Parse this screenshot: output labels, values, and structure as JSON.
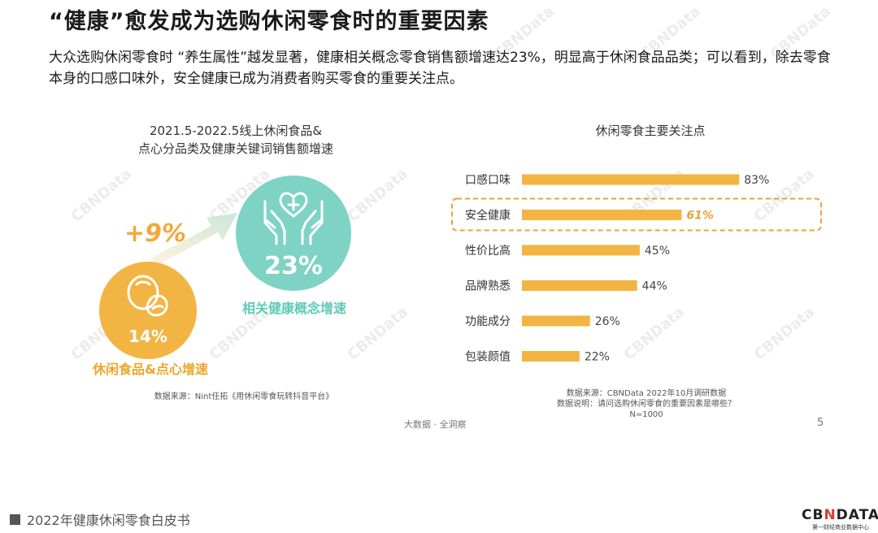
{
  "title": "“健康”愈发成为选购休闲零食时的重要因素",
  "intro": "大众选购休闲零食时 “养生属性”越发显著，健康相关概念零食销售额增速达23%，明显高于休闲食品品类；可以看到，除去零食本身的口感口味外，安全健康已成为消费者购买零食的重要关注点。",
  "left_panel": {
    "title_line1": "2021.5-2022.5线上休闲食品&",
    "title_line2": "点心分品类及健康关键词销售额增速",
    "big_value": "23%",
    "big_label": "相关健康概念增速",
    "small_value": "14%",
    "small_label": "休闲食品&点心增速",
    "diff": "+9%",
    "source": "数据来源：Nint任拓《用休闲零食玩转抖音平台》",
    "colors": {
      "green": "#7ed3c5",
      "orange": "#f2b543"
    }
  },
  "chart_data": {
    "type": "bar",
    "orientation": "horizontal",
    "title": "休闲零食主要关注点",
    "categories": [
      "口感口味",
      "安全健康",
      "性价比高",
      "品牌熟悉",
      "功能成分",
      "包装颜值"
    ],
    "values": [
      83,
      61,
      45,
      44,
      26,
      22
    ],
    "value_labels": [
      "83%",
      "61%",
      "45%",
      "44%",
      "26%",
      "22%"
    ],
    "highlight_index": 1,
    "xlim": [
      0,
      100
    ],
    "bar_color": "#f2b543",
    "highlight_color": "#e9a23b"
  },
  "right_source": {
    "line1": "数据来源：CBNData 2022年10月调研数据",
    "line2": "数据说明：请问选购休闲零食的重要因素是哪些？",
    "line3": "N=1000"
  },
  "footer": {
    "center": "大数据 · 全洞察",
    "page": "5",
    "book": "2022年健康休闲零食白皮书",
    "logo_pre": "CB",
    "logo_x": "N",
    "logo_post": "DATA",
    "logo_sub": "第一财经商业数据中心"
  }
}
